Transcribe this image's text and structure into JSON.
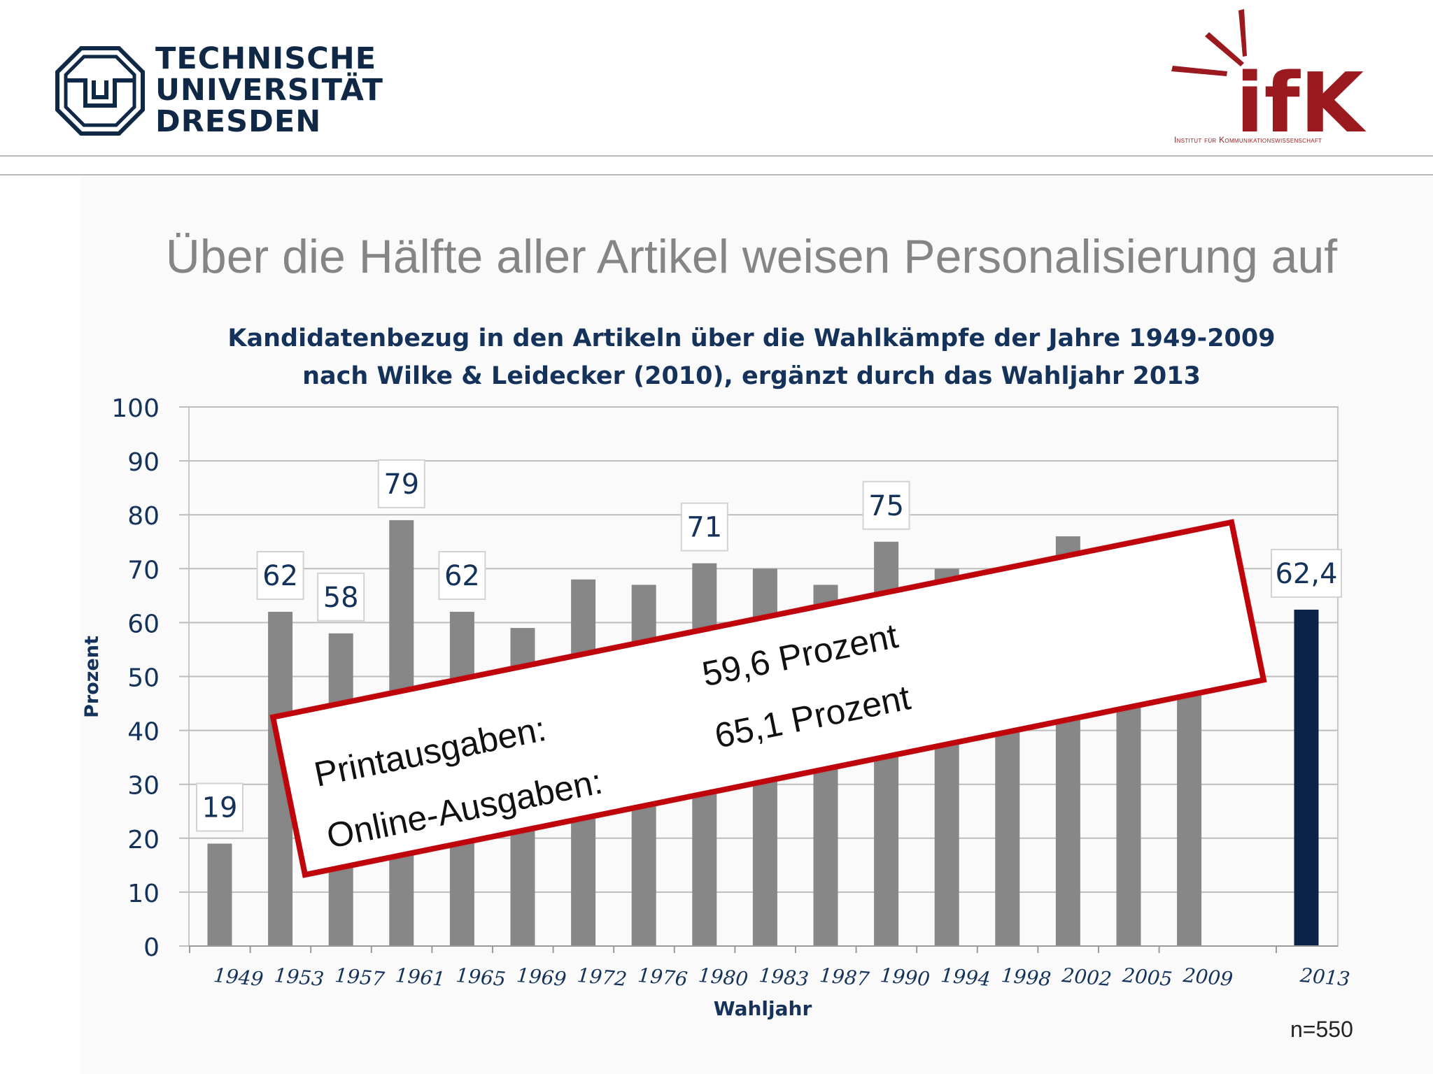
{
  "header": {
    "tud_logo_lines": [
      "TECHNISCHE",
      "UNIVERSITÄT",
      "DRESDEN"
    ],
    "ifk_logo_text": "ifK",
    "ifk_subtitle": "Institut für Kommunikationswissenschaft"
  },
  "slide": {
    "headline": "Über die Hälfte aller Artikel weisen Personalisierung auf",
    "sample_size": "n=550"
  },
  "overlay": {
    "rows": [
      {
        "label": "Printausgaben:",
        "value": "59,6 Prozent"
      },
      {
        "label": "Online-Ausgaben:",
        "value": "65,1 Prozent"
      }
    ]
  },
  "colors": {
    "bar": "#878787",
    "highlight_bar": "#0c2348",
    "title": "#14325a",
    "accent_red": "#c0040c",
    "ifk_red": "#9b1a1f"
  },
  "chart_data": {
    "type": "bar",
    "title_lines": [
      "Kandidatenbezug in den Artikeln über die Wahlkämpfe der Jahre 1949-2009",
      "nach Wilke & Leidecker (2010), ergänzt durch das Wahljahr 2013"
    ],
    "xlabel": "Wahljahr",
    "ylabel": "Prozent",
    "ylim": [
      0,
      100
    ],
    "yticks": [
      0,
      10,
      20,
      30,
      40,
      50,
      60,
      70,
      80,
      90,
      100
    ],
    "grid": true,
    "categories": [
      "1949",
      "1953",
      "1957",
      "1961",
      "1965",
      "1969",
      "1972",
      "1976",
      "1980",
      "1983",
      "1987",
      "1990",
      "1994",
      "1998",
      "2002",
      "2005",
      "2009",
      "2013"
    ],
    "values": [
      19,
      62,
      58,
      79,
      62,
      59,
      68,
      67,
      71,
      70,
      67,
      75,
      70,
      69,
      76,
      72,
      76,
      62.4
    ],
    "data_labels": [
      "19",
      "62",
      "58",
      "79",
      "62",
      "",
      "",
      "",
      "71",
      "",
      "",
      "75",
      "",
      "",
      "",
      "",
      "",
      "62,4"
    ],
    "highlight_category": "2013"
  }
}
